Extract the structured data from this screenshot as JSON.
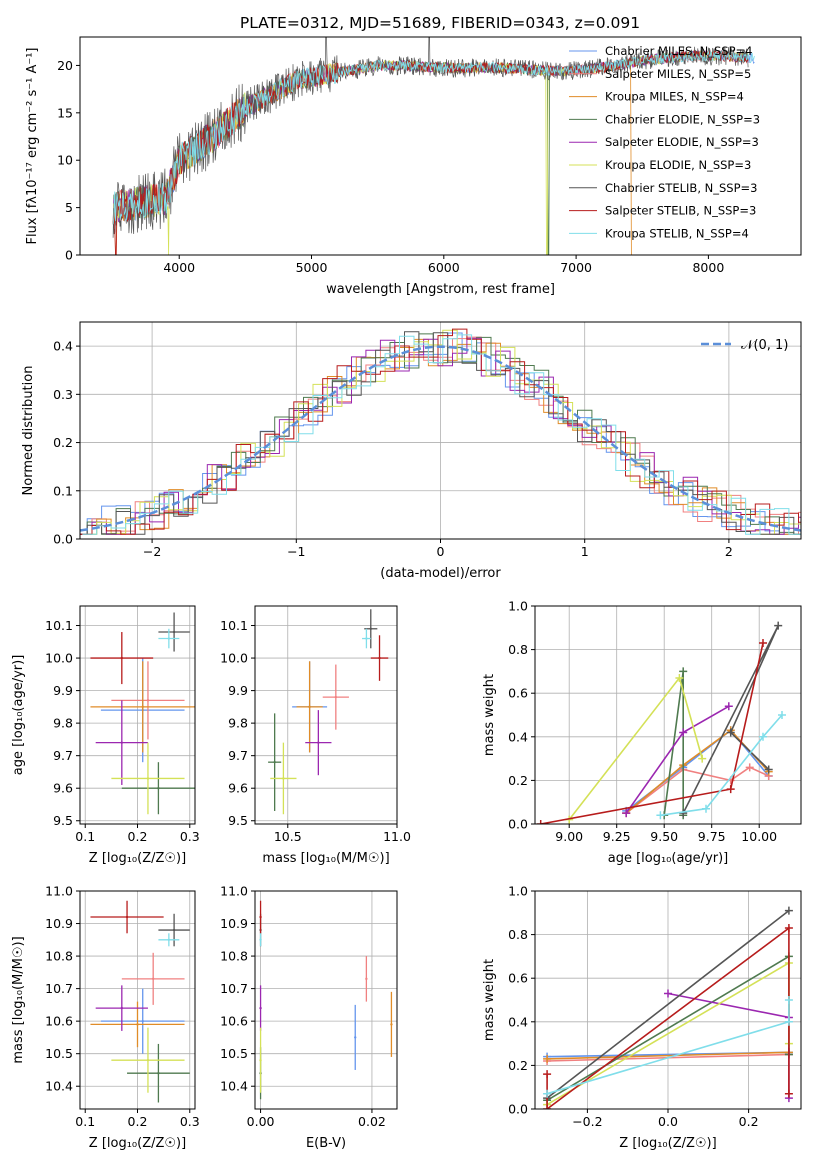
{
  "colors": {
    "s1": "#6495ed",
    "s2": "#f08080",
    "s3": "#e08c28",
    "s4": "#4f7a4f",
    "s5": "#9b27b0",
    "s6": "#d4e157",
    "s7": "#555555",
    "s8": "#b71c1c",
    "s9": "#80deea",
    "s10": "#ff6f00",
    "norm": "#5b8fd9"
  },
  "chart_data": [
    {
      "id": "spectrum",
      "type": "line",
      "title": "PLATE=0312, MJD=51689, FIBERID=0343, z=0.091",
      "xlabel": "wavelength [Angstrom, rest frame]",
      "ylabel": "Flux [fλ10⁻¹⁷ erg cm⁻² s⁻¹ A⁻¹]",
      "xlim": [
        3250,
        8700
      ],
      "ylim": [
        0,
        23
      ],
      "xticks": [
        "4000",
        "5000",
        "6000",
        "7000",
        "8000"
      ],
      "yticks": [
        "0",
        "5",
        "10",
        "15",
        "20"
      ],
      "continuum_x": [
        3500,
        3700,
        3900,
        4000,
        4100,
        4300,
        4500,
        4700,
        4900,
        5100,
        5300,
        5500,
        5700,
        5900,
        6100,
        6300,
        6500,
        6700,
        6900,
        7100,
        7300,
        7500,
        7700,
        7900,
        8100,
        8300
      ],
      "continuum_y": [
        5,
        5.5,
        6,
        10,
        11,
        13,
        15.5,
        17,
        18.5,
        19,
        19.5,
        20,
        20,
        19.8,
        19.7,
        19.8,
        19.7,
        19.5,
        19.4,
        19.6,
        20,
        20.5,
        20.8,
        21,
        21,
        20.8
      ],
      "legend_position": "upper right",
      "legend": [
        {
          "label": "Chabrier MILES, N_SSP=4",
          "color_key": "s1"
        },
        {
          "label": "Salpeter MILES, N_SSP=5",
          "color_key": "s2"
        },
        {
          "label": "Kroupa MILES, N_SSP=4",
          "color_key": "s3"
        },
        {
          "label": "Chabrier ELODIE, N_SSP=3",
          "color_key": "s4"
        },
        {
          "label": "Salpeter ELODIE, N_SSP=3",
          "color_key": "s5"
        },
        {
          "label": "Kroupa ELODIE, N_SSP=3",
          "color_key": "s6"
        },
        {
          "label": "Chabrier STELIB, N_SSP=3",
          "color_key": "s7"
        },
        {
          "label": "Salpeter STELIB, N_SSP=3",
          "color_key": "s8"
        },
        {
          "label": "Kroupa STELIB, N_SSP=4",
          "color_key": "s9"
        }
      ]
    },
    {
      "id": "residuals",
      "type": "line",
      "xlabel": "(data-model)/error",
      "ylabel": "Normed distribution",
      "xlim": [
        -2.5,
        2.5
      ],
      "ylim": [
        0,
        0.45
      ],
      "xticks": [
        "−2",
        "−1",
        "0",
        "1",
        "2"
      ],
      "yticks": [
        "0.0",
        "0.1",
        "0.2",
        "0.3",
        "0.4"
      ],
      "grid": true,
      "legend_label": "𝒩(0, 1)",
      "legend_position": "upper right",
      "bin_width": 0.1
    },
    {
      "id": "age_Z",
      "type": "scatter",
      "xlabel": "Z [log₁₀(Z/Z☉)]",
      "ylabel": "age  [log₁₀(age/yr)]",
      "xlim": [
        0.09,
        0.31
      ],
      "ylim": [
        9.49,
        10.16
      ],
      "xticks": [
        "0.1",
        "0.2",
        "0.3"
      ],
      "yticks": [
        "9.5",
        "9.6",
        "9.7",
        "9.8",
        "9.9",
        "10.0",
        "10.1"
      ],
      "grid": true,
      "points": [
        {
          "c": "s1",
          "x": 0.21,
          "y": 9.84,
          "xe": 0.08,
          "ye": 0.16
        },
        {
          "c": "s2",
          "x": 0.22,
          "y": 9.87,
          "xe": 0.07,
          "ye": 0.12
        },
        {
          "c": "s3",
          "x": 0.21,
          "y": 9.85,
          "xe": 0.1,
          "ye": 0.14
        },
        {
          "c": "s4",
          "x": 0.24,
          "y": 9.6,
          "xe": 0.07,
          "ye": 0.08
        },
        {
          "c": "s5",
          "x": 0.17,
          "y": 9.74,
          "xe": 0.05,
          "ye": 0.13
        },
        {
          "c": "s6",
          "x": 0.22,
          "y": 9.63,
          "xe": 0.07,
          "ye": 0.11
        },
        {
          "c": "s7",
          "x": 0.27,
          "y": 10.08,
          "xe": 0.03,
          "ye": 0.06
        },
        {
          "c": "s8",
          "x": 0.17,
          "y": 10.0,
          "xe": 0.06,
          "ye": 0.08
        },
        {
          "c": "s9",
          "x": 0.26,
          "y": 10.06,
          "xe": 0.02,
          "ye": 0.03
        }
      ]
    },
    {
      "id": "age_mass",
      "type": "scatter",
      "xlabel": "mass [log₁₀(M/M☉)]",
      "xlim": [
        10.35,
        11.0
      ],
      "ylim": [
        9.49,
        10.16
      ],
      "xticks": [
        "10.5",
        "11.0"
      ],
      "yticks": [
        "9.5",
        "9.6",
        "9.7",
        "9.8",
        "9.9",
        "10.0",
        "10.1"
      ],
      "grid": true,
      "points": [
        {
          "c": "s1",
          "x": 10.6,
          "y": 9.85,
          "xe": 0.08,
          "ye": 0.14
        },
        {
          "c": "s2",
          "x": 10.72,
          "y": 9.88,
          "xe": 0.06,
          "ye": 0.1
        },
        {
          "c": "s3",
          "x": 10.6,
          "y": 9.85,
          "xe": 0.06,
          "ye": 0.14
        },
        {
          "c": "s4",
          "x": 10.44,
          "y": 9.68,
          "xe": 0.03,
          "ye": 0.15
        },
        {
          "c": "s5",
          "x": 10.64,
          "y": 9.74,
          "xe": 0.06,
          "ye": 0.1
        },
        {
          "c": "s6",
          "x": 10.48,
          "y": 9.63,
          "xe": 0.06,
          "ye": 0.11
        },
        {
          "c": "s7",
          "x": 10.88,
          "y": 10.09,
          "xe": 0.03,
          "ye": 0.06
        },
        {
          "c": "s8",
          "x": 10.92,
          "y": 10.0,
          "xe": 0.04,
          "ye": 0.07
        },
        {
          "c": "s9",
          "x": 10.86,
          "y": 10.06,
          "xe": 0.02,
          "ye": 0.03
        }
      ]
    },
    {
      "id": "weight_age",
      "type": "line",
      "xlabel": "age  [log₁₀(age/yr)]",
      "ylabel": "mass weight",
      "xlim": [
        8.82,
        10.22
      ],
      "ylim": [
        0,
        1
      ],
      "xticks": [
        "9.00",
        "9.25",
        "9.50",
        "9.75",
        "10.00"
      ],
      "yticks": [
        "0.0",
        "0.2",
        "0.4",
        "0.6",
        "0.8",
        "1.0"
      ],
      "grid": true,
      "series": [
        {
          "c": "s1",
          "x": [
            9.3,
            9.6,
            9.85,
            10.05
          ],
          "y": [
            0.06,
            0.26,
            0.43,
            0.22
          ]
        },
        {
          "c": "s2",
          "x": [
            9.3,
            9.6,
            9.85,
            9.95,
            10.05
          ],
          "y": [
            0.05,
            0.25,
            0.2,
            0.26,
            0.22
          ]
        },
        {
          "c": "s3",
          "x": [
            9.3,
            9.6,
            9.85,
            10.05
          ],
          "y": [
            0.05,
            0.27,
            0.43,
            0.24
          ]
        },
        {
          "c": "s4",
          "x": [
            9.5,
            9.6,
            9.6
          ],
          "y": [
            0.04,
            0.7,
            0.04
          ]
        },
        {
          "c": "s5",
          "x": [
            9.3,
            9.6,
            9.84
          ],
          "y": [
            0.05,
            0.42,
            0.54
          ]
        },
        {
          "c": "s6",
          "x": [
            9.0,
            9.58,
            9.7
          ],
          "y": [
            0.02,
            0.67,
            0.3
          ]
        },
        {
          "c": "s7",
          "x": [
            9.6,
            10.1,
            9.85,
            10.05
          ],
          "y": [
            0.05,
            0.91,
            0.42,
            0.25
          ]
        },
        {
          "c": "s8",
          "x": [
            8.85,
            9.85,
            10.02
          ],
          "y": [
            0.0,
            0.16,
            0.83
          ]
        },
        {
          "c": "s9",
          "x": [
            9.48,
            9.72,
            10.02,
            10.12
          ],
          "y": [
            0.04,
            0.07,
            0.4,
            0.5
          ]
        }
      ]
    },
    {
      "id": "mass_Z",
      "type": "scatter",
      "xlabel": "Z [log₁₀(Z/Z☉)]",
      "ylabel": "mass [log₁₀(M/M☉)]",
      "xlim": [
        0.09,
        0.31
      ],
      "ylim": [
        10.33,
        11.0
      ],
      "xticks": [
        "0.1",
        "0.2",
        "0.3"
      ],
      "yticks": [
        "10.4",
        "10.5",
        "10.6",
        "10.7",
        "10.8",
        "10.9",
        "11.0"
      ],
      "grid": true,
      "points": [
        {
          "c": "s1",
          "x": 0.21,
          "y": 10.6,
          "xe": 0.08,
          "ye": 0.1
        },
        {
          "c": "s2",
          "x": 0.23,
          "y": 10.73,
          "xe": 0.06,
          "ye": 0.08
        },
        {
          "c": "s3",
          "x": 0.2,
          "y": 10.59,
          "xe": 0.09,
          "ye": 0.07
        },
        {
          "c": "s4",
          "x": 0.24,
          "y": 10.44,
          "xe": 0.06,
          "ye": 0.09
        },
        {
          "c": "s5",
          "x": 0.17,
          "y": 10.64,
          "xe": 0.05,
          "ye": 0.07
        },
        {
          "c": "s6",
          "x": 0.22,
          "y": 10.48,
          "xe": 0.07,
          "ye": 0.1
        },
        {
          "c": "s7",
          "x": 0.27,
          "y": 10.88,
          "xe": 0.03,
          "ye": 0.05
        },
        {
          "c": "s8",
          "x": 0.18,
          "y": 10.92,
          "xe": 0.07,
          "ye": 0.05
        },
        {
          "c": "s9",
          "x": 0.26,
          "y": 10.85,
          "xe": 0.02,
          "ye": 0.02
        }
      ]
    },
    {
      "id": "mass_EBV",
      "type": "scatter",
      "xlabel": "E(B-V)",
      "xlim": [
        -0.001,
        0.0245
      ],
      "ylim": [
        10.33,
        11.0
      ],
      "xticks": [
        "0.00",
        "0.02"
      ],
      "yticks": [
        "10.4",
        "10.5",
        "10.6",
        "10.7",
        "10.8",
        "10.9",
        "11.0"
      ],
      "grid": true,
      "points": [
        {
          "c": "s1",
          "x": 0.017,
          "y": 10.55,
          "xe": 0,
          "ye": 0.1
        },
        {
          "c": "s2",
          "x": 0.019,
          "y": 10.73,
          "xe": 0,
          "ye": 0.07
        },
        {
          "c": "s3",
          "x": 0.0235,
          "y": 10.59,
          "xe": 0,
          "ye": 0.1
        },
        {
          "c": "s4",
          "x": 0.0,
          "y": 10.44,
          "xe": 0,
          "ye": 0.08
        },
        {
          "c": "s5",
          "x": 0.0,
          "y": 10.64,
          "xe": 0,
          "ye": 0.07
        },
        {
          "c": "s6",
          "x": 0.0,
          "y": 10.48,
          "xe": 0,
          "ye": 0.1
        },
        {
          "c": "s7",
          "x": 0.0,
          "y": 10.88,
          "xe": 0,
          "ye": 0.05
        },
        {
          "c": "s8",
          "x": 0.0,
          "y": 10.92,
          "xe": 0,
          "ye": 0.05
        },
        {
          "c": "s9",
          "x": 0.0,
          "y": 10.85,
          "xe": 0,
          "ye": 0.02
        }
      ]
    },
    {
      "id": "weight_Z",
      "type": "line",
      "xlabel": "Z [log₁₀(Z/Z☉)]",
      "ylabel": "mass weight",
      "xlim": [
        -0.33,
        0.33
      ],
      "ylim": [
        0,
        1
      ],
      "xticks": [
        "−0.2",
        "0.0",
        "0.2"
      ],
      "yticks": [
        "0.0",
        "0.2",
        "0.4",
        "0.6",
        "0.8",
        "1.0"
      ],
      "grid": true,
      "series": [
        {
          "c": "s1",
          "x": [
            -0.3,
            0.3,
            0.3
          ],
          "y": [
            0.24,
            0.26,
            0.25
          ]
        },
        {
          "c": "s2",
          "x": [
            -0.3,
            0.3
          ],
          "y": [
            0.22,
            0.25
          ]
        },
        {
          "c": "s3",
          "x": [
            -0.3,
            0.3
          ],
          "y": [
            0.23,
            0.26
          ]
        },
        {
          "c": "s4",
          "x": [
            -0.3,
            0.3,
            0.3
          ],
          "y": [
            0.04,
            0.7,
            0.25
          ]
        },
        {
          "c": "s5",
          "x": [
            0.0,
            0.3,
            0.3
          ],
          "y": [
            0.53,
            0.42,
            0.05
          ]
        },
        {
          "c": "s6",
          "x": [
            -0.3,
            0.3,
            0.3
          ],
          "y": [
            0.02,
            0.67,
            0.3
          ]
        },
        {
          "c": "s7",
          "x": [
            -0.3,
            0.3
          ],
          "y": [
            0.05,
            0.91
          ]
        },
        {
          "c": "s8",
          "x": [
            -0.3,
            -0.3,
            0.3,
            0.3
          ],
          "y": [
            0.16,
            0.0,
            0.83,
            0.07
          ]
        },
        {
          "c": "s9",
          "x": [
            -0.3,
            0.3,
            0.3
          ],
          "y": [
            0.07,
            0.4,
            0.5
          ]
        }
      ]
    }
  ]
}
